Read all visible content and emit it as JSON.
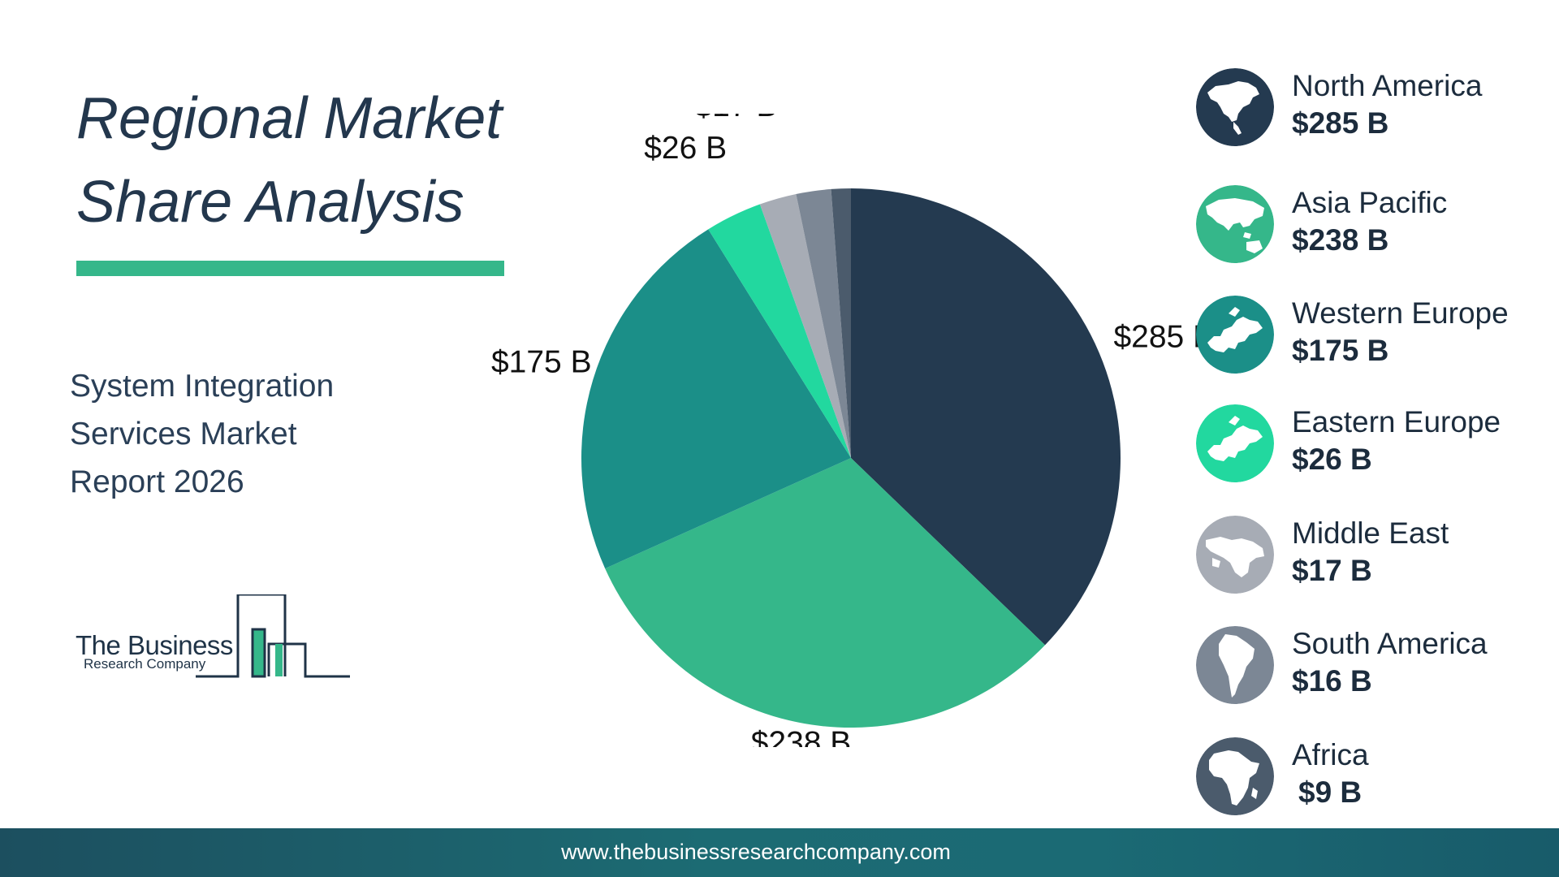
{
  "title": {
    "line1": "Regional Market",
    "line2": "Share Analysis"
  },
  "subtitle": {
    "line1": "System Integration",
    "line2": "Services Market",
    "line3": "Report 2026"
  },
  "logo": {
    "line1": "The Business",
    "line2": "Research Company"
  },
  "footer": {
    "url": "www.thebusinessresearchcompany.com"
  },
  "colors": {
    "title": "#23374d",
    "accent": "#35b78a",
    "footer": "#1c6b73"
  },
  "chart_data": {
    "type": "pie",
    "title": "",
    "unit": "$ B",
    "start": "12 o'clock, clockwise",
    "slices": [
      {
        "name": "North America",
        "value": 285,
        "label": "$285 B",
        "color": "#243a50",
        "icon": "north-america-map-icon"
      },
      {
        "name": "Asia Pacific",
        "value": 238,
        "label": "$238 B",
        "color": "#35b78a",
        "icon": "asia-pacific-map-icon"
      },
      {
        "name": "Western Europe",
        "value": 175,
        "label": "$175 B",
        "color": "#1b8f88",
        "icon": "western-europe-map-icon"
      },
      {
        "name": "Eastern Europe",
        "value": 26,
        "label": "$26 B",
        "color": "#22d89f",
        "icon": "eastern-europe-map-icon"
      },
      {
        "name": "Middle East",
        "value": 17,
        "label": "$17 B",
        "color": "#a7acb5",
        "icon": "middle-east-map-icon"
      },
      {
        "name": "South America",
        "value": 16,
        "label": "$16 B",
        "color": "#7c8795",
        "icon": "south-america-map-icon"
      },
      {
        "name": "Africa",
        "value": 9,
        "label": "$9 B",
        "color": "#4b5b6c",
        "icon": "africa-map-icon"
      }
    ],
    "legend": "right"
  }
}
